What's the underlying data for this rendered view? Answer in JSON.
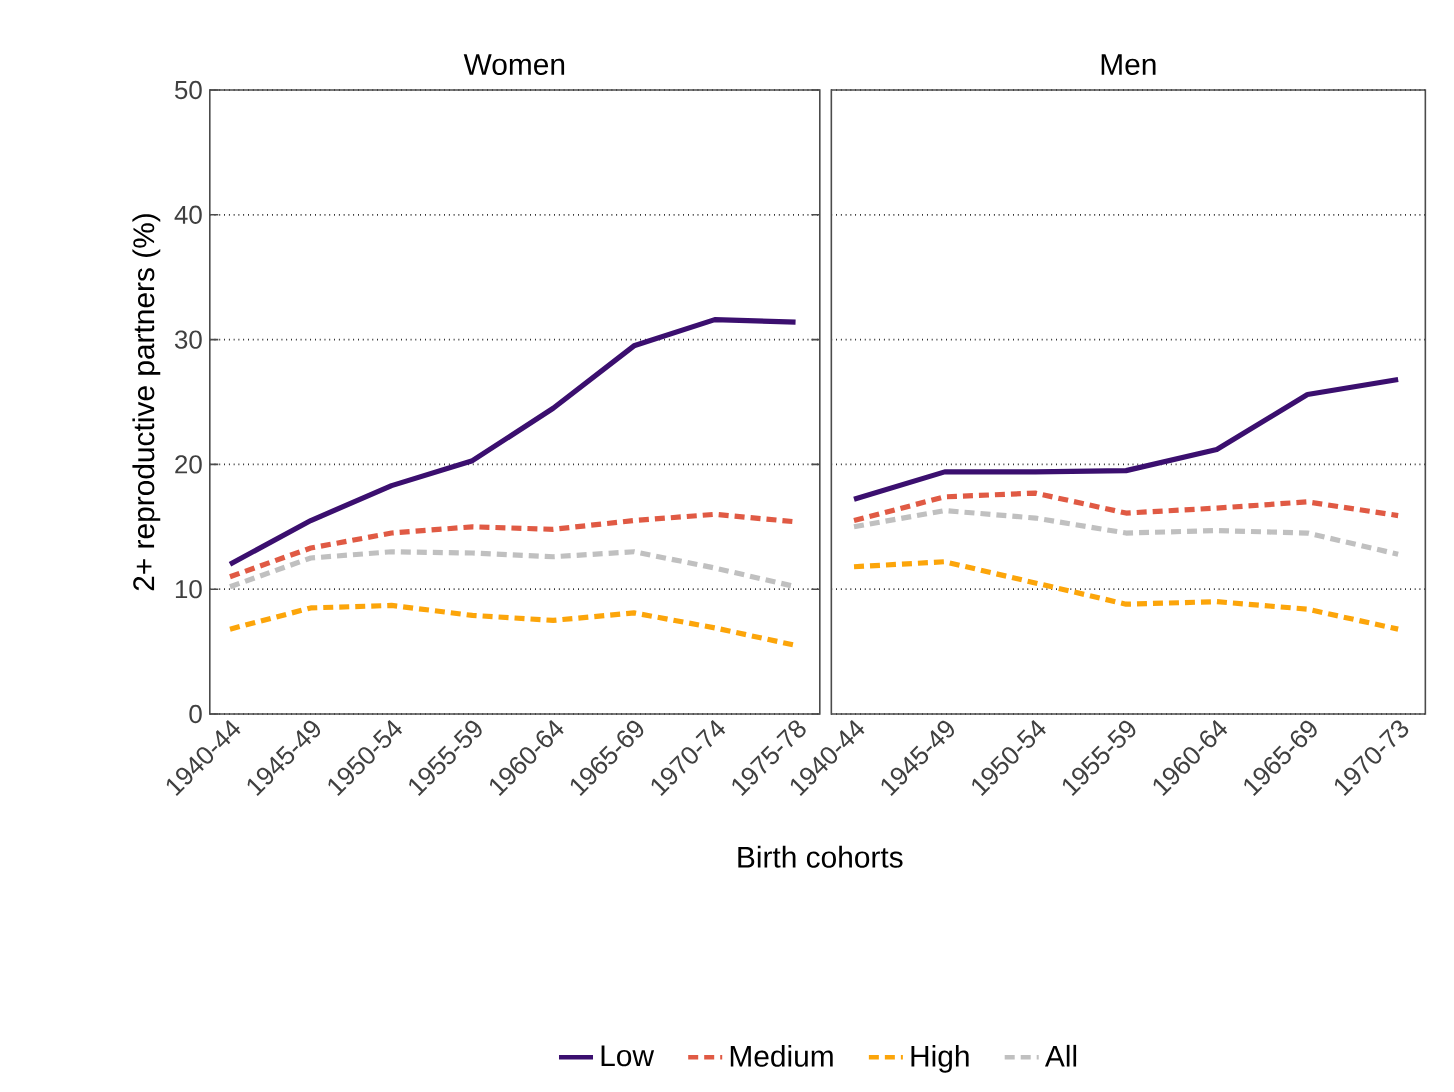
{
  "chart_data": [
    {
      "type": "line",
      "title": "Women",
      "xlabel": "Birth cohorts",
      "ylabel": "2+ reproductive partners (%)",
      "categories": [
        "1940-44",
        "1945-49",
        "1950-54",
        "1955-59",
        "1960-64",
        "1965-69",
        "1970-74",
        "1975-78"
      ],
      "ylim": [
        0,
        50
      ],
      "yticks": [
        0,
        10,
        20,
        30,
        40,
        50
      ],
      "grid": "y",
      "series": [
        {
          "color": "#3b0f6f",
          "line_style": "solid",
          "values": [
            12,
            15.5,
            18.3,
            20.3,
            24.5,
            29.5,
            31.6,
            31.4
          ]
        },
        {
          "color": "#e05a44",
          "line_style": "dashed",
          "values": [
            11,
            13.3,
            14.5,
            15,
            14.8,
            15.5,
            16,
            15.4
          ]
        },
        {
          "color": "#fca50a",
          "line_style": "dashed",
          "values": [
            6.8,
            8.5,
            8.7,
            7.9,
            7.5,
            8.1,
            6.9,
            5.5
          ]
        },
        {
          "color": "#c0c0c0",
          "line_style": "dashed",
          "values": [
            10.2,
            12.5,
            13,
            12.9,
            12.6,
            13,
            11.7,
            10.2
          ]
        }
      ]
    },
    {
      "type": "line",
      "title": "Men",
      "categories": [
        "1940-44",
        "1945-49",
        "1950-54",
        "1955-59",
        "1960-64",
        "1965-69",
        "1970-73"
      ],
      "ylim": [
        0,
        50
      ],
      "yticks": [
        0,
        10,
        20,
        30,
        40,
        50
      ],
      "grid": "y",
      "tick_labels": "x",
      "legend": "bottom",
      "series": [
        {
          "name": "Low",
          "color": "#3b0f6f",
          "line_style": "solid",
          "values": [
            17.2,
            19.4,
            19.4,
            19.5,
            21.2,
            25.6,
            26.8
          ]
        },
        {
          "name": "Medium",
          "color": "#e05a44",
          "line_style": "dashed",
          "values": [
            15.5,
            17.4,
            17.7,
            16.1,
            16.5,
            17,
            15.9
          ]
        },
        {
          "name": "High",
          "color": "#fca50a",
          "line_style": "dashed",
          "values": [
            11.8,
            12.2,
            10.5,
            8.8,
            9,
            8.4,
            6.8
          ]
        },
        {
          "name": "All",
          "color": "#c0c0c0",
          "line_style": "dashed",
          "values": [
            15,
            16.3,
            15.7,
            14.5,
            14.7,
            14.5,
            12.8
          ]
        }
      ]
    }
  ]
}
